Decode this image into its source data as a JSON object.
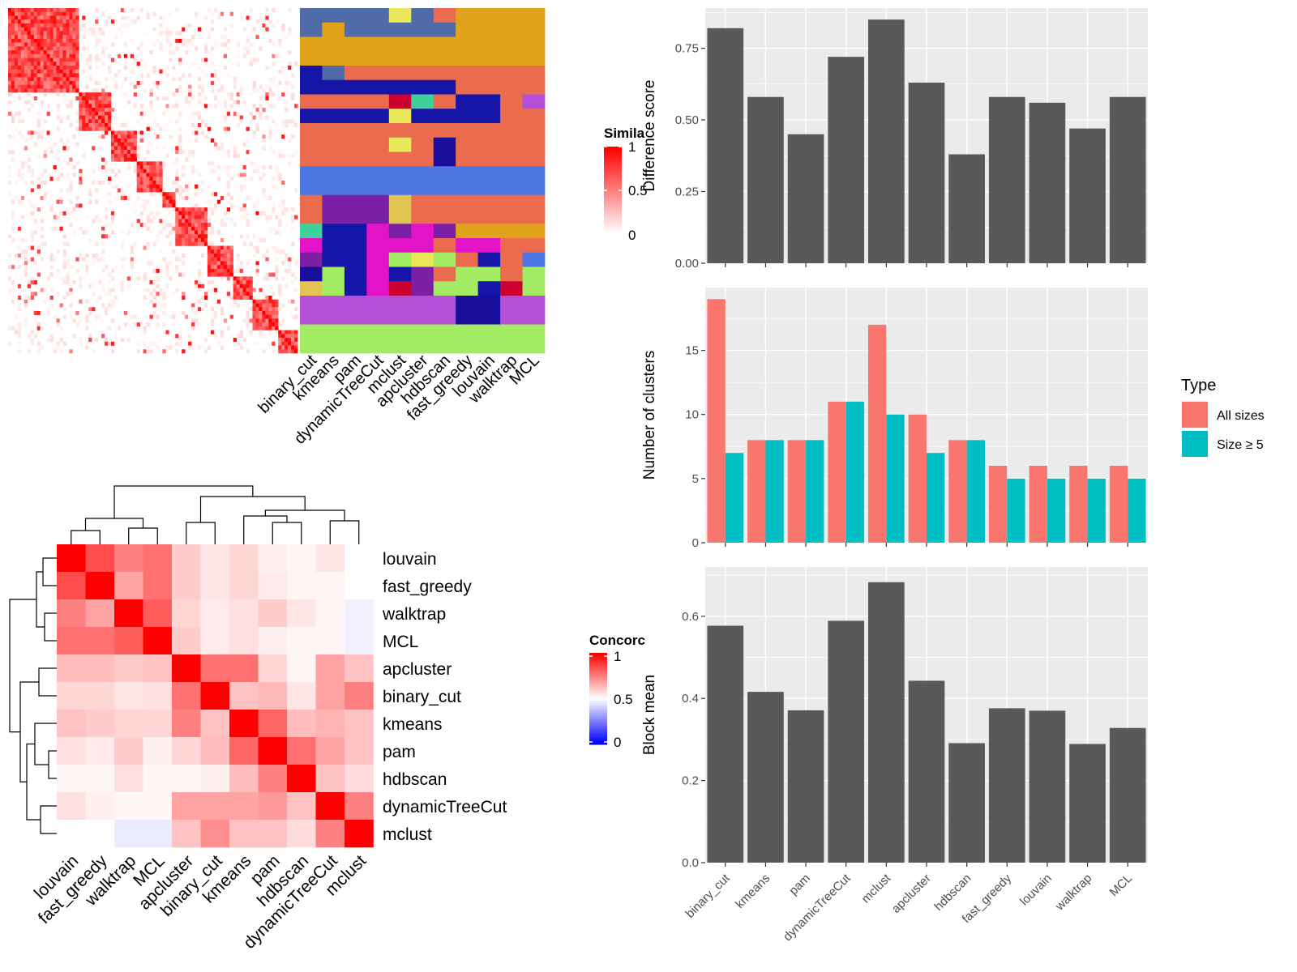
{
  "methods_order_top": [
    "binary_cut",
    "kmeans",
    "pam",
    "dynamicTreeCut",
    "mclust",
    "apcluster",
    "hdbscan",
    "fast_greedy",
    "louvain",
    "walktrap",
    "MCL"
  ],
  "colors": {
    "panel_bg": "#EBEBEB",
    "grid": "#FFFFFF",
    "bar": "#595959",
    "all_sizes": "#F8766D",
    "size_ge5": "#00BFC4",
    "heat_red": "#FF0000",
    "heat_blue": "#0000FF"
  },
  "similarity_heatmap": {
    "legend_title": "Simila",
    "legend_ticks": [
      "1",
      "0.5",
      "0"
    ]
  },
  "class_panel": {
    "palette": [
      "#E0A31B",
      "#4F6BA8",
      "#EB6B4F",
      "#1515A8",
      "#4D77E2",
      "#7B1FA5",
      "#E313C7",
      "#A3EB63",
      "#B54FD8",
      "#E2C453",
      "#1A0F9C",
      "#CC0030",
      "#3FD19C",
      "#E8E85A"
    ],
    "rows": [
      [
        1,
        1,
        1,
        1,
        13,
        1,
        2,
        0,
        0,
        0,
        0
      ],
      [
        1,
        0,
        1,
        1,
        1,
        1,
        1,
        0,
        0,
        0,
        0
      ],
      [
        0,
        0,
        0,
        0,
        0,
        0,
        0,
        0,
        0,
        0,
        0
      ],
      [
        0,
        0,
        0,
        0,
        0,
        0,
        0,
        0,
        0,
        0,
        0
      ],
      [
        3,
        1,
        2,
        2,
        2,
        2,
        2,
        2,
        2,
        2,
        2
      ],
      [
        3,
        3,
        3,
        3,
        3,
        3,
        3,
        2,
        2,
        2,
        2
      ],
      [
        2,
        2,
        2,
        2,
        11,
        12,
        2,
        3,
        3,
        2,
        8
      ],
      [
        3,
        3,
        3,
        3,
        13,
        3,
        3,
        3,
        3,
        2,
        2
      ],
      [
        2,
        2,
        2,
        2,
        2,
        2,
        2,
        2,
        2,
        2,
        2
      ],
      [
        2,
        2,
        2,
        2,
        13,
        2,
        10,
        2,
        2,
        2,
        2
      ],
      [
        2,
        2,
        2,
        2,
        2,
        2,
        10,
        2,
        2,
        2,
        2
      ],
      [
        4,
        4,
        4,
        4,
        4,
        4,
        4,
        4,
        4,
        4,
        4
      ],
      [
        4,
        4,
        4,
        4,
        4,
        4,
        4,
        4,
        4,
        4,
        4
      ],
      [
        2,
        5,
        5,
        5,
        9,
        2,
        2,
        2,
        2,
        2,
        2
      ],
      [
        2,
        5,
        5,
        5,
        9,
        2,
        2,
        2,
        2,
        2,
        2
      ],
      [
        12,
        3,
        3,
        6,
        5,
        6,
        5,
        0,
        0,
        0,
        0
      ],
      [
        6,
        3,
        3,
        6,
        6,
        6,
        2,
        6,
        6,
        2,
        2
      ],
      [
        5,
        3,
        3,
        6,
        7,
        13,
        7,
        2,
        3,
        2,
        4
      ],
      [
        10,
        7,
        3,
        6,
        3,
        5,
        2,
        7,
        7,
        2,
        7
      ],
      [
        9,
        7,
        3,
        6,
        11,
        5,
        7,
        7,
        3,
        11,
        7
      ],
      [
        8,
        8,
        8,
        8,
        8,
        8,
        8,
        10,
        10,
        8,
        8
      ],
      [
        8,
        8,
        8,
        8,
        8,
        8,
        8,
        10,
        10,
        8,
        8
      ],
      [
        7,
        7,
        7,
        7,
        7,
        7,
        7,
        7,
        7,
        7,
        7
      ],
      [
        7,
        7,
        7,
        7,
        7,
        7,
        7,
        7,
        7,
        7,
        7
      ]
    ]
  },
  "concordance": {
    "legend_title": "Concorc",
    "legend_ticks": [
      "1",
      "0.5",
      "0"
    ],
    "row_labels": [
      "louvain",
      "fast_greedy",
      "walktrap",
      "MCL",
      "apcluster",
      "binary_cut",
      "kmeans",
      "pam",
      "hdbscan",
      "dynamicTreeCut",
      "mclust"
    ],
    "col_labels": [
      "louvain",
      "fast_greedy",
      "walktrap",
      "MCL",
      "apcluster",
      "binary_cut",
      "kmeans",
      "pam",
      "hdbscan",
      "dynamicTreeCut",
      "mclust"
    ],
    "matrix": [
      [
        1.0,
        0.85,
        0.75,
        0.78,
        0.6,
        0.55,
        0.58,
        0.53,
        0.52,
        0.55,
        0.5
      ],
      [
        0.85,
        1.0,
        0.68,
        0.78,
        0.6,
        0.55,
        0.58,
        0.54,
        0.52,
        0.52,
        0.5
      ],
      [
        0.75,
        0.68,
        1.0,
        0.82,
        0.58,
        0.54,
        0.56,
        0.6,
        0.55,
        0.52,
        0.47
      ],
      [
        0.78,
        0.78,
        0.82,
        1.0,
        0.6,
        0.54,
        0.56,
        0.53,
        0.52,
        0.52,
        0.47
      ],
      [
        0.63,
        0.63,
        0.6,
        0.62,
        1.0,
        0.78,
        0.78,
        0.58,
        0.52,
        0.68,
        0.62
      ],
      [
        0.58,
        0.58,
        0.55,
        0.56,
        0.78,
        1.0,
        0.62,
        0.64,
        0.55,
        0.68,
        0.75
      ],
      [
        0.62,
        0.6,
        0.58,
        0.58,
        0.75,
        0.62,
        1.0,
        0.8,
        0.63,
        0.65,
        0.62
      ],
      [
        0.56,
        0.54,
        0.6,
        0.53,
        0.58,
        0.63,
        0.8,
        1.0,
        0.78,
        0.68,
        0.62
      ],
      [
        0.52,
        0.52,
        0.56,
        0.52,
        0.52,
        0.53,
        0.63,
        0.75,
        1.0,
        0.62,
        0.57
      ],
      [
        0.56,
        0.53,
        0.52,
        0.52,
        0.68,
        0.68,
        0.68,
        0.7,
        0.62,
        1.0,
        0.75
      ],
      [
        0.5,
        0.5,
        0.46,
        0.46,
        0.62,
        0.72,
        0.62,
        0.62,
        0.57,
        0.75,
        1.0
      ]
    ]
  },
  "chart_data": [
    {
      "type": "bar",
      "categories": [
        "binary_cut",
        "kmeans",
        "pam",
        "dynamicTreeCut",
        "mclust",
        "apcluster",
        "hdbscan",
        "fast_greedy",
        "louvain",
        "walktrap",
        "MCL"
      ],
      "values": [
        0.82,
        0.58,
        0.45,
        0.72,
        0.85,
        0.63,
        0.38,
        0.58,
        0.56,
        0.47,
        0.58
      ],
      "xlabel": "",
      "ylabel": "Difference score",
      "ylim": [
        0,
        0.89
      ],
      "yticks": [
        0,
        0.25,
        0.5,
        0.75
      ],
      "ytick_labels": [
        "0.00",
        "0.25",
        "0.50",
        "0.75"
      ],
      "grid": true,
      "show_x_labels": false
    },
    {
      "type": "bar",
      "categories": [
        "binary_cut",
        "kmeans",
        "pam",
        "dynamicTreeCut",
        "mclust",
        "apcluster",
        "hdbscan",
        "fast_greedy",
        "louvain",
        "walktrap",
        "MCL"
      ],
      "series": [
        {
          "name": "All sizes",
          "values": [
            19,
            8,
            8,
            11,
            17,
            10,
            8,
            6,
            6,
            6,
            6
          ]
        },
        {
          "name": "Size ≥ 5",
          "values": [
            7,
            8,
            8,
            11,
            10,
            7,
            8,
            5,
            5,
            5,
            5
          ]
        }
      ],
      "xlabel": "",
      "ylabel": "Number of clusters",
      "ylim": [
        0,
        19.9
      ],
      "yticks": [
        0,
        5,
        10,
        15
      ],
      "ytick_labels": [
        "0",
        "5",
        "10",
        "15"
      ],
      "grid": true,
      "show_x_labels": false,
      "legend": {
        "title": "Type",
        "position": "right",
        "entries": [
          "All sizes",
          "Size ≥ 5"
        ]
      }
    },
    {
      "type": "bar",
      "categories": [
        "binary_cut",
        "kmeans",
        "pam",
        "dynamicTreeCut",
        "mclust",
        "apcluster",
        "hdbscan",
        "fast_greedy",
        "louvain",
        "walktrap",
        "MCL"
      ],
      "values": [
        0.577,
        0.416,
        0.371,
        0.589,
        0.683,
        0.443,
        0.291,
        0.376,
        0.37,
        0.289,
        0.328
      ],
      "xlabel": "",
      "ylabel": "Block mean",
      "ylim": [
        0,
        0.72
      ],
      "yticks": [
        0,
        0.2,
        0.4,
        0.6
      ],
      "ytick_labels": [
        "0.0",
        "0.2",
        "0.4",
        "0.6"
      ],
      "grid": true,
      "show_x_labels": true
    }
  ]
}
